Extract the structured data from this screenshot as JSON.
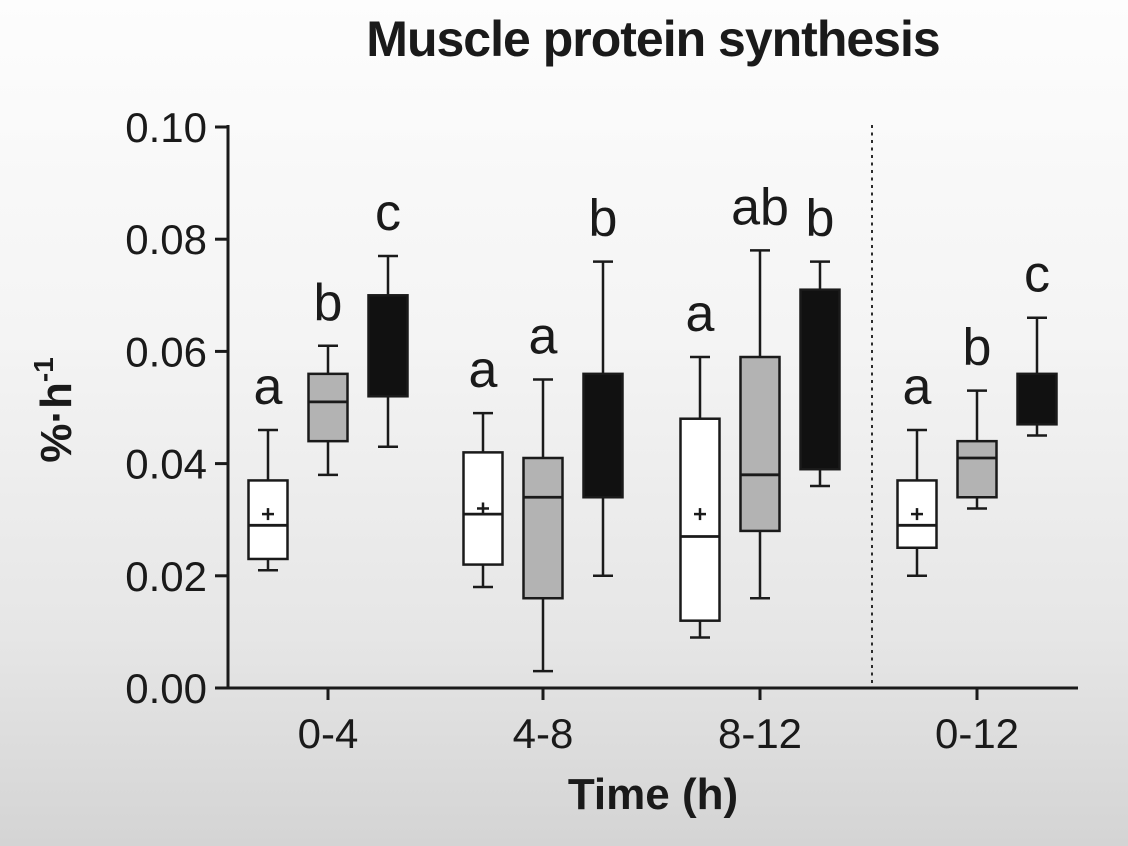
{
  "page": {
    "background_top": "#fdfdfd",
    "background_bottom": "#d4d4d4"
  },
  "chart_data": {
    "type": "box",
    "title": "Muscle protein synthesis",
    "xlabel": "Time (h)",
    "ylabel": "%·h⁻¹",
    "ylabel_parts": {
      "base": "%·h",
      "sup": "-1"
    },
    "ylim": [
      0,
      0.1
    ],
    "yticks": {
      "values": [
        0,
        0.02,
        0.04,
        0.06,
        0.08,
        0.1
      ],
      "labels": [
        "0.00",
        "0.02",
        "0.04",
        "0.06",
        "0.08",
        "0.10"
      ]
    },
    "categories": [
      "0-4",
      "4-8",
      "8-12",
      "0-12"
    ],
    "grid": false,
    "legend": false,
    "axis_color": "#1a1a1a",
    "separator": {
      "style": "dashed-vertical",
      "between": [
        "8-12",
        "0-12"
      ]
    },
    "series": [
      {
        "name": "white",
        "fill": "#ffffff",
        "boxes": [
          {
            "category": "0-4",
            "whisker_low": 0.021,
            "q1": 0.023,
            "median": 0.029,
            "mean": 0.031,
            "q3": 0.037,
            "whisker_high": 0.046,
            "sig_letter": "a"
          },
          {
            "category": "4-8",
            "whisker_low": 0.018,
            "q1": 0.022,
            "median": 0.031,
            "mean": 0.032,
            "q3": 0.042,
            "whisker_high": 0.049,
            "sig_letter": "a"
          },
          {
            "category": "8-12",
            "whisker_low": 0.009,
            "q1": 0.012,
            "median": 0.027,
            "mean": 0.031,
            "q3": 0.048,
            "whisker_high": 0.059,
            "sig_letter": "a"
          },
          {
            "category": "0-12",
            "whisker_low": 0.02,
            "q1": 0.025,
            "median": 0.029,
            "mean": 0.031,
            "q3": 0.037,
            "whisker_high": 0.046,
            "sig_letter": "a"
          }
        ]
      },
      {
        "name": "gray",
        "fill": "#b3b3b3",
        "boxes": [
          {
            "category": "0-4",
            "whisker_low": 0.038,
            "q1": 0.044,
            "median": 0.051,
            "mean": null,
            "q3": 0.056,
            "whisker_high": 0.061,
            "sig_letter": "b"
          },
          {
            "category": "4-8",
            "whisker_low": 0.003,
            "q1": 0.016,
            "median": 0.034,
            "mean": null,
            "q3": 0.041,
            "whisker_high": 0.055,
            "sig_letter": "a"
          },
          {
            "category": "8-12",
            "whisker_low": 0.016,
            "q1": 0.028,
            "median": 0.038,
            "mean": null,
            "q3": 0.059,
            "whisker_high": 0.078,
            "sig_letter": "ab"
          },
          {
            "category": "0-12",
            "whisker_low": 0.032,
            "q1": 0.034,
            "median": 0.041,
            "mean": null,
            "q3": 0.044,
            "whisker_high": 0.053,
            "sig_letter": "b"
          }
        ]
      },
      {
        "name": "black",
        "fill": "#111111",
        "boxes": [
          {
            "category": "0-4",
            "whisker_low": 0.043,
            "q1": 0.052,
            "median": null,
            "mean": null,
            "q3": 0.07,
            "whisker_high": 0.077,
            "sig_letter": "c"
          },
          {
            "category": "4-8",
            "whisker_low": 0.02,
            "q1": 0.034,
            "median": null,
            "mean": null,
            "q3": 0.056,
            "whisker_high": 0.076,
            "sig_letter": "b"
          },
          {
            "category": "8-12",
            "whisker_low": 0.036,
            "q1": 0.039,
            "median": null,
            "mean": null,
            "q3": 0.071,
            "whisker_high": 0.076,
            "sig_letter": "b"
          },
          {
            "category": "0-12",
            "whisker_low": 0.045,
            "q1": 0.047,
            "median": null,
            "mean": null,
            "q3": 0.056,
            "whisker_high": 0.066,
            "sig_letter": "c"
          }
        ]
      }
    ]
  }
}
